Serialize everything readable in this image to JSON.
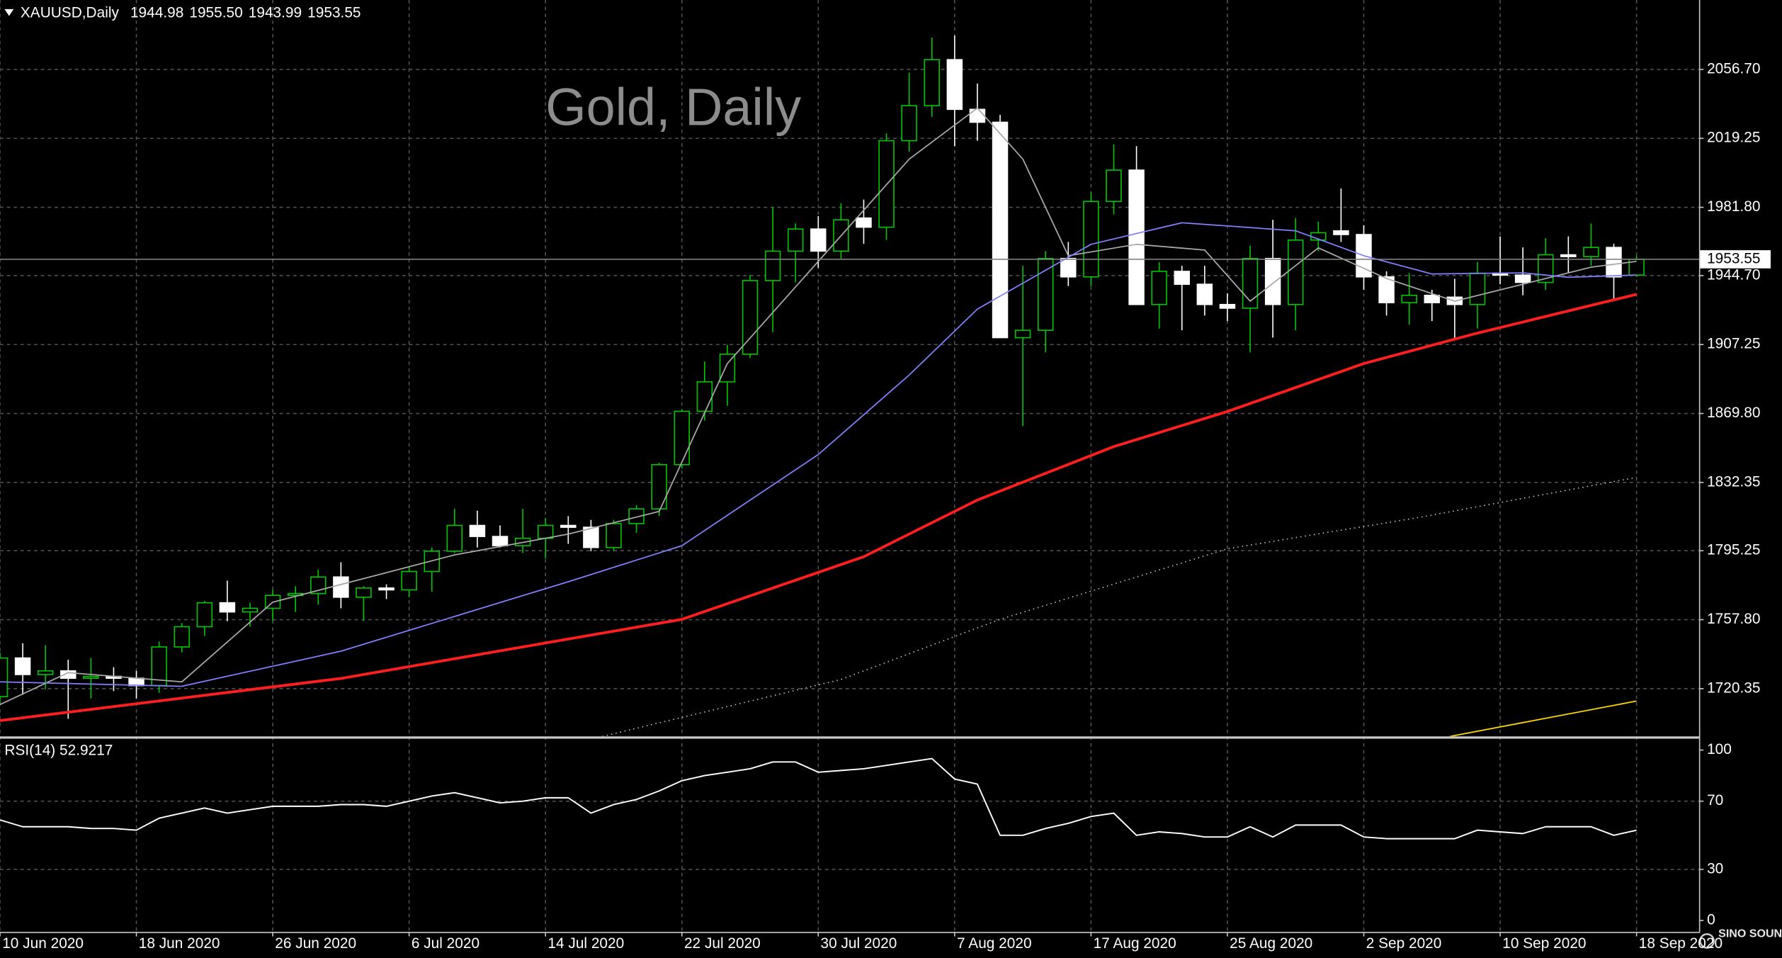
{
  "chart_data": [
    {
      "type": "candlestick",
      "title": "Gold, Daily",
      "symbol": "XAUUSD,Daily",
      "ohlc_labels": [
        "1944.98",
        "1955.50",
        "1943.99",
        "1953.55"
      ],
      "up_color": "#00c800",
      "down_color": "#ffffff",
      "open": [
        1716,
        1737,
        1728,
        1730,
        1726,
        1727,
        1726,
        1722,
        1743,
        1754,
        1767,
        1762,
        1764,
        1771,
        1772,
        1781,
        1770,
        1775,
        1774,
        1784,
        1795,
        1809,
        1803,
        1798,
        1802,
        1809,
        1808,
        1797,
        1810,
        1818,
        1842,
        1871,
        1887,
        1902,
        1942,
        1958,
        1970,
        1958,
        1976,
        1971,
        2018,
        2037,
        2062,
        2035,
        2028,
        1911,
        1915,
        1954,
        1944,
        1985,
        2002,
        1929,
        1947,
        1940,
        1929,
        1927,
        1954,
        1929,
        1964,
        1969,
        1967,
        1944,
        1930,
        1934,
        1933,
        1929,
        1946,
        1945,
        1941,
        1956,
        1955,
        1960,
        1944.98
      ],
      "high": [
        1740,
        1745,
        1744,
        1736,
        1737,
        1732,
        1730,
        1746,
        1756,
        1768,
        1779,
        1767,
        1774,
        1776,
        1785,
        1789,
        1776,
        1777,
        1787,
        1797,
        1818,
        1817,
        1809,
        1818,
        1813,
        1814,
        1812,
        1812,
        1820,
        1843,
        1872,
        1898,
        1907,
        1945,
        1982,
        1973,
        1977,
        1984,
        1986,
        2022,
        2055,
        2074,
        2075,
        2049,
        2032,
        1950,
        1958,
        1963,
        1990,
        2016,
        2015,
        1952,
        1950,
        1950,
        1935,
        1961,
        1975,
        1976,
        1974,
        1992,
        1972,
        1947,
        1946,
        1937,
        1943,
        1952,
        1966,
        1960,
        1965,
        1966,
        1973,
        1962,
        1955.5
      ],
      "low": [
        1712,
        1717,
        1720,
        1704,
        1715,
        1719,
        1715,
        1718,
        1740,
        1749,
        1757,
        1754,
        1757,
        1762,
        1766,
        1764,
        1757,
        1769,
        1770,
        1773,
        1794,
        1797,
        1797,
        1794,
        1791,
        1799,
        1795,
        1795,
        1805,
        1814,
        1840,
        1866,
        1874,
        1900,
        1914,
        1941,
        1949,
        1954,
        1962,
        1964,
        2012,
        2031,
        2015,
        2018,
        1911,
        1863,
        1903,
        1939,
        1939,
        1978,
        1929,
        1916,
        1915,
        1923,
        1920,
        1903,
        1911,
        1915,
        1958,
        1963,
        1937,
        1923,
        1918,
        1920,
        1910,
        1916,
        1940,
        1934,
        1937,
        1946,
        1950,
        1931,
        1943.99
      ],
      "close": [
        1737,
        1728,
        1730,
        1726,
        1727,
        1726,
        1722,
        1743,
        1754,
        1767,
        1762,
        1764,
        1771,
        1772,
        1781,
        1770,
        1775,
        1774,
        1784,
        1795,
        1809,
        1803,
        1798,
        1802,
        1809,
        1808,
        1797,
        1810,
        1818,
        1842,
        1871,
        1887,
        1902,
        1942,
        1958,
        1970,
        1958,
        1975,
        1971,
        2018,
        2037,
        2062,
        2035,
        2028,
        1911,
        1915,
        1954,
        1944,
        1985,
        2002,
        1929,
        1947,
        1940,
        1929,
        1927,
        1954,
        1929,
        1964,
        1968,
        1967,
        1944,
        1930,
        1934,
        1930,
        1929,
        1946,
        1945,
        1941,
        1956,
        1955,
        1960,
        1944,
        1953.55
      ],
      "xticks": [
        {
          "value": 0,
          "label": "10 Jun 2020"
        },
        {
          "value": 6,
          "label": "18 Jun 2020"
        },
        {
          "value": 12,
          "label": "26 Jun 2020"
        },
        {
          "value": 18,
          "label": "6 Jul 2020"
        },
        {
          "value": 24,
          "label": "14 Jul 2020"
        },
        {
          "value": 30,
          "label": "22 Jul 2020"
        },
        {
          "value": 36,
          "label": "30 Jul 2020"
        },
        {
          "value": 42,
          "label": "7 Aug 2020"
        },
        {
          "value": 48,
          "label": "17 Aug 2020"
        },
        {
          "value": 54,
          "label": "25 Aug 2020"
        },
        {
          "value": 60,
          "label": "2 Sep 2020"
        },
        {
          "value": 66,
          "label": "10 Sep 2020"
        },
        {
          "value": 72,
          "label": "18 Sep 2020"
        }
      ],
      "ylim": [
        1694.4,
        2094.4
      ],
      "yticks": [
        {
          "value": 2056.7,
          "label": "2056.70"
        },
        {
          "value": 2019.25,
          "label": "2019.25"
        },
        {
          "value": 1981.8,
          "label": "1981.80"
        },
        {
          "value": 1944.7,
          "label": "1944.70"
        },
        {
          "value": 1907.25,
          "label": "1907.25"
        },
        {
          "value": 1869.8,
          "label": "1869.80"
        },
        {
          "value": 1832.35,
          "label": "1832.35"
        },
        {
          "value": 1795.25,
          "label": "1795.25"
        },
        {
          "value": 1757.8,
          "label": "1757.80"
        },
        {
          "value": 1720.35,
          "label": "1720.35"
        }
      ],
      "grid": true,
      "price_line": {
        "value": 1953.55,
        "label": "1953.55"
      },
      "lines": [
        {
          "color": "#a8a8a8",
          "style": "solid",
          "x": [
            0,
            3,
            8,
            12,
            20,
            25,
            29,
            32,
            36,
            40,
            43,
            45,
            47,
            50,
            53,
            55,
            58,
            61,
            64,
            67,
            70,
            72
          ],
          "values": [
            1711.7,
            1729,
            1724,
            1767.3,
            1793,
            1804.3,
            1816.6,
            1896.9,
            1952.4,
            2008,
            2035.7,
            2008,
            1955.5,
            1961.7,
            1958.6,
            1930.8,
            1959.8,
            1943.1,
            1930.8,
            1940,
            1949.3,
            1952.4
          ]
        },
        {
          "color": "#8080ff",
          "style": "solid",
          "x": [
            0,
            8,
            15,
            25,
            30,
            36,
            40,
            43,
            48,
            52,
            57,
            60,
            63,
            67,
            69,
            72
          ],
          "values": [
            1724,
            1721.6,
            1740.7,
            1778.4,
            1798,
            1847.5,
            1890.7,
            1926.5,
            1961.7,
            1973.4,
            1969,
            1955.5,
            1945.6,
            1946.2,
            1943.8,
            1945
          ]
        },
        {
          "color": "#ff1e1e",
          "style": "thick",
          "x": [
            0,
            15,
            30,
            38,
            43,
            49,
            54,
            60,
            65,
            72
          ],
          "values": [
            1703,
            1725.9,
            1758,
            1792,
            1822.8,
            1851.8,
            1870.9,
            1896.9,
            1913.5,
            1934.5
          ]
        },
        {
          "color": "#bcbcbc",
          "style": "dotted",
          "x": [
            26.5,
            37,
            44,
            54,
            62.5,
            72
          ],
          "values": [
            1694.4,
            1725.3,
            1758,
            1796.3,
            1813.5,
            1835.1
          ]
        },
        {
          "color": "#ffd700",
          "style": "solid",
          "x": [
            63.8,
            72
          ],
          "values": [
            1694.4,
            1713.6
          ]
        }
      ]
    },
    {
      "type": "line",
      "title": "RSI(14) 52.9217",
      "color": "#ffffff",
      "values": [
        59,
        55,
        55,
        55,
        54,
        54,
        53,
        60,
        63,
        66,
        63,
        65,
        67,
        67,
        67,
        68,
        68,
        67,
        70,
        73,
        75,
        72,
        69,
        70,
        72,
        72,
        63,
        68,
        71,
        76,
        82,
        85,
        87,
        89,
        93,
        93,
        87,
        88,
        89,
        91,
        93,
        95,
        83,
        80,
        50,
        50,
        54,
        57,
        61,
        63,
        50,
        52,
        51,
        49,
        49,
        55,
        49,
        56,
        56,
        56,
        49,
        48,
        48,
        48,
        48,
        53,
        52,
        51,
        55,
        55,
        55,
        50,
        52.9217
      ],
      "ylim": [
        0,
        100
      ],
      "yticks": [
        100,
        70,
        30,
        0
      ]
    }
  ],
  "watermark": "SINO SOUND"
}
